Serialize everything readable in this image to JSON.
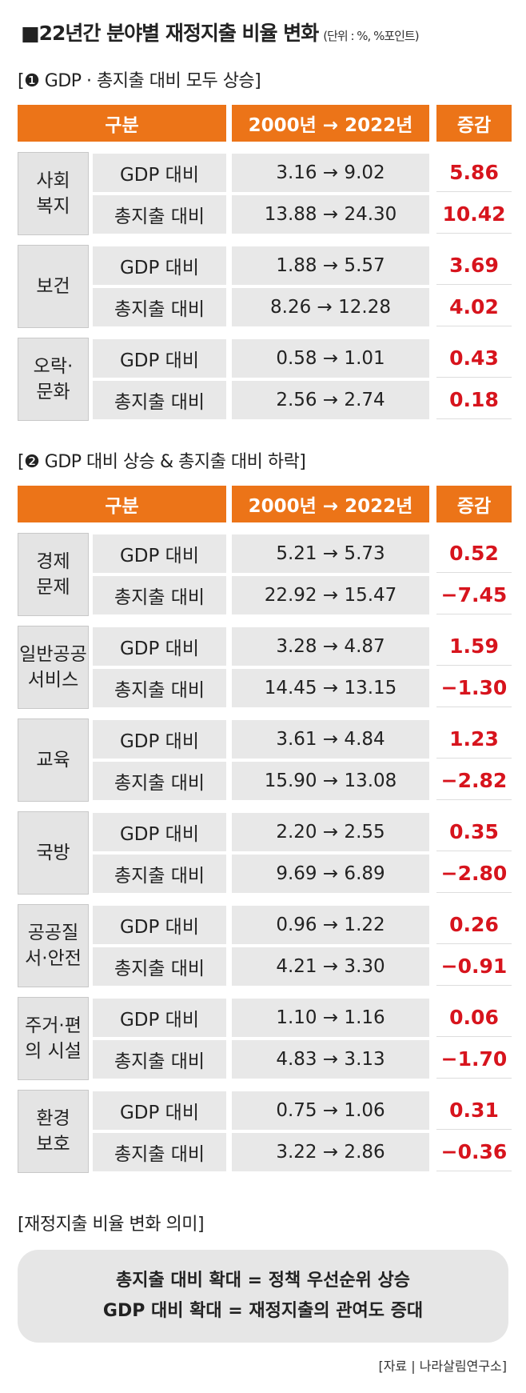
{
  "header": {
    "title": "■22년간 분야별 재정지출 비율 변화",
    "unit": "(단위 : %, %포인트)"
  },
  "sections": [
    {
      "title": "[❶ GDP · 총지출 대비 모두 상승]",
      "columns": [
        "구분",
        "2000년 → 2022년",
        "증감"
      ],
      "groups": [
        {
          "name": [
            "사회",
            "복지"
          ],
          "rows": [
            {
              "label": "GDP 대비",
              "change": "3.16 → 9.02",
              "diff": "5.86"
            },
            {
              "label": "총지출 대비",
              "change": "13.88 → 24.30",
              "diff": "10.42"
            }
          ]
        },
        {
          "name": [
            "보건"
          ],
          "rows": [
            {
              "label": "GDP 대비",
              "change": "1.88 → 5.57",
              "diff": "3.69"
            },
            {
              "label": "총지출 대비",
              "change": "8.26 → 12.28",
              "diff": "4.02"
            }
          ]
        },
        {
          "name": [
            "오락·",
            "문화"
          ],
          "rows": [
            {
              "label": "GDP 대비",
              "change": "0.58 → 1.01",
              "diff": "0.43"
            },
            {
              "label": "총지출 대비",
              "change": "2.56 → 2.74",
              "diff": "0.18"
            }
          ]
        }
      ]
    },
    {
      "title": "[❷ GDP 대비 상승 & 총지출 대비 하락]",
      "columns": [
        "구분",
        "2000년 → 2022년",
        "증감"
      ],
      "groups": [
        {
          "name": [
            "경제",
            "문제"
          ],
          "rows": [
            {
              "label": "GDP 대비",
              "change": "5.21 → 5.73",
              "diff": "0.52"
            },
            {
              "label": "총지출 대비",
              "change": "22.92 → 15.47",
              "diff": "−7.45"
            }
          ]
        },
        {
          "name": [
            "일반공공",
            "서비스"
          ],
          "rows": [
            {
              "label": "GDP 대비",
              "change": "3.28 → 4.87",
              "diff": "1.59"
            },
            {
              "label": "총지출 대비",
              "change": "14.45 → 13.15",
              "diff": "−1.30"
            }
          ]
        },
        {
          "name": [
            "교육"
          ],
          "rows": [
            {
              "label": "GDP 대비",
              "change": "3.61 → 4.84",
              "diff": "1.23"
            },
            {
              "label": "총지출 대비",
              "change": "15.90 → 13.08",
              "diff": "−2.82"
            }
          ]
        },
        {
          "name": [
            "국방"
          ],
          "rows": [
            {
              "label": "GDP 대비",
              "change": "2.20 → 2.55",
              "diff": "0.35"
            },
            {
              "label": "총지출 대비",
              "change": "9.69 → 6.89",
              "diff": "−2.80"
            }
          ]
        },
        {
          "name": [
            "공공질",
            "서·안전"
          ],
          "rows": [
            {
              "label": "GDP 대비",
              "change": "0.96 → 1.22",
              "diff": "0.26"
            },
            {
              "label": "총지출 대비",
              "change": "4.21 → 3.30",
              "diff": "−0.91"
            }
          ]
        },
        {
          "name": [
            "주거·편",
            "의 시설"
          ],
          "rows": [
            {
              "label": "GDP 대비",
              "change": "1.10 → 1.16",
              "diff": "0.06"
            },
            {
              "label": "총지출 대비",
              "change": "4.83 → 3.13",
              "diff": "−1.70"
            }
          ]
        },
        {
          "name": [
            "환경",
            "보호"
          ],
          "rows": [
            {
              "label": "GDP 대비",
              "change": "0.75 → 1.06",
              "diff": "0.31"
            },
            {
              "label": "총지출 대비",
              "change": "3.22 → 2.86",
              "diff": "−0.36"
            }
          ]
        }
      ]
    }
  ],
  "footer": {
    "title": "[재정지출 비율 변화 의미]",
    "lines": [
      "총지출 대비 확대 = 정책 우선순위 상승",
      "GDP 대비 확대 = 재정지출의 관여도 증대"
    ],
    "source": "[자료 | 나라살림연구소]"
  }
}
